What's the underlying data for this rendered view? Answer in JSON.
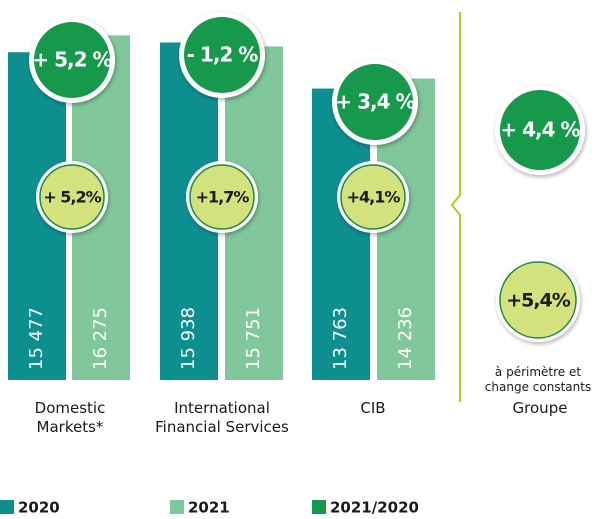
{
  "chart_data": {
    "type": "bar",
    "categories": [
      "Domestic Markets*",
      "International Financial Services",
      "CIB",
      "Groupe"
    ],
    "series": [
      {
        "name": "2020",
        "color": "#0e8f8f",
        "values": [
          15477,
          15938,
          13763,
          null
        ],
        "value_labels": [
          "15 477",
          "15 938",
          "13 763",
          null
        ]
      },
      {
        "name": "2021",
        "color": "#80c79b",
        "values": [
          16275,
          15751,
          14236,
          null
        ],
        "value_labels": [
          "16 275",
          "15 751",
          "14 236",
          null
        ]
      }
    ],
    "change": {
      "name": "2021/2020",
      "color": "#16994a",
      "values": [
        5.2,
        -1.2,
        3.4,
        4.4
      ],
      "value_labels": [
        "+ 5,2 %",
        "- 1,2 %",
        "+ 3,4 %",
        "+ 4,4 %"
      ]
    },
    "constant_change": {
      "color": "#d3e27c",
      "values": [
        5.2,
        1.7,
        4.1,
        5.4
      ],
      "value_labels": [
        "+ 5,2%",
        "+1,7%",
        "+4,1%",
        "+5,4%"
      ],
      "note": "à périmètre et change constants"
    },
    "ylim": [
      0,
      17000
    ]
  }
}
